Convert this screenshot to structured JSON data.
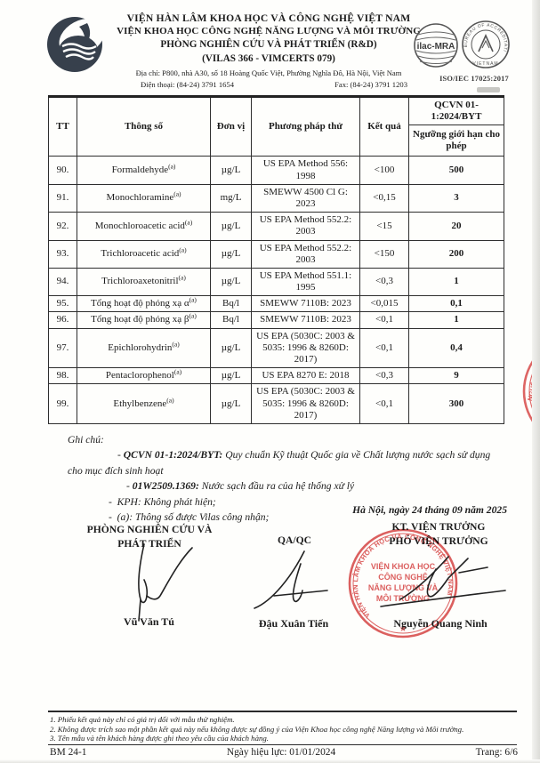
{
  "header": {
    "org_line1": "VIỆN HÀN LÂM KHOA HỌC VÀ CÔNG NGHỆ VIỆT NAM",
    "org_line2": "VIỆN KHOA HỌC CÔNG NGHỆ NĂNG LƯỢNG VÀ MÔI TRƯỜNG",
    "org_line3": "PHÒNG NGHIÊN CỨU VÀ PHÁT TRIỂN (R&D)",
    "org_line4": "(VILAS 366 - VIMCERTS 079)",
    "address": "Địa chỉ: P800, nhà A30, số 18 Hoàng Quốc Việt, Phường Nghĩa Đô, Hà Nội, Việt Nam",
    "phone": "Điện thoại: (84-24) 3791 1654",
    "fax": "Fax: (84-24) 3791 1203",
    "ilac_label": "ilac-MRA",
    "accreditation_ring_text": "BUREAU OF ACCREDITATION",
    "accreditation_bottom_text": "VIETNAM",
    "iso_label": "ISO/IEC 17025:2017"
  },
  "table": {
    "col_headers": {
      "tt": "TT",
      "param": "Thông số",
      "unit": "Đơn vị",
      "method": "Phương pháp thử",
      "result": "Kết quả"
    },
    "qcvn_header": "QCVN 01-1:2024/BYT",
    "qcvn_subheader": "Ngưỡng giới hạn cho phép",
    "rows": [
      {
        "tt": "90.",
        "param": "Formaldehyde",
        "mark": "(a)",
        "unit": "µg/L",
        "method": "US EPA Method 556: 1998",
        "result": "<100",
        "limit": "500"
      },
      {
        "tt": "91.",
        "param": "Monochloramine",
        "mark": "(a)",
        "unit": "mg/L",
        "method": "SMEWW 4500 Cl G: 2023",
        "result": "<0,15",
        "limit": "3"
      },
      {
        "tt": "92.",
        "param": "Monochloroacetic acid",
        "mark": "(a)",
        "unit": "µg/L",
        "method": "US EPA Method 552.2: 2003",
        "result": "<15",
        "limit": "20"
      },
      {
        "tt": "93.",
        "param": "Trichloroacetic acid",
        "mark": "(a)",
        "unit": "µg/L",
        "method": "US EPA Method 552.2: 2003",
        "result": "<150",
        "limit": "200"
      },
      {
        "tt": "94.",
        "param": "Trichloroaxetonitril",
        "mark": "(a)",
        "unit": "µg/L",
        "method": "US EPA Method 551.1: 1995",
        "result": "<0,3",
        "limit": "1"
      },
      {
        "tt": "95.",
        "param": "Tổng hoạt độ phóng xạ α",
        "mark": "(a)",
        "unit": "Bq/l",
        "method": "SMEWW 7110B: 2023",
        "result": "<0,015",
        "limit": "0,1"
      },
      {
        "tt": "96.",
        "param": "Tổng hoạt độ phóng xạ β",
        "mark": "(a)",
        "unit": "Bq/l",
        "method": "SMEWW 7110B: 2023",
        "result": "<0,1",
        "limit": "1"
      },
      {
        "tt": "97.",
        "param": "Epichlorohydrin",
        "mark": "(a)",
        "unit": "µg/L",
        "method": "US EPA (5030C: 2003 & 5035: 1996 & 8260D: 2017)",
        "result": "<0,1",
        "limit": "0,4"
      },
      {
        "tt": "98.",
        "param": "Pentaclorophenol",
        "mark": "(a)",
        "unit": "µg/L",
        "method": "US EPA 8270 E: 2018",
        "result": "<0,3",
        "limit": "9"
      },
      {
        "tt": "99.",
        "param": "Ethylbenzene",
        "mark": "(a)",
        "unit": "µg/L",
        "method": "US EPA (5030C: 2003 & 5035: 1996 & 8260D: 2017)",
        "result": "<0,1",
        "limit": "300"
      }
    ]
  },
  "notes": {
    "label": "Ghi chú:",
    "items": [
      {
        "lead": "QCVN 01-1:2024/BYT:",
        "rest": "Quy chuẩn Kỹ thuật Quốc gia về Chất lượng nước sạch sử dụng cho mục đích sinh hoạt"
      },
      {
        "lead": "01W2509.1369:",
        "rest": "Nước sạch đầu ra của hệ thống xử lý"
      },
      {
        "lead": "",
        "rest": "KPH: Không phát hiện;"
      },
      {
        "lead": "",
        "rest": "(a): Thông số được Vilas công nhận;"
      }
    ]
  },
  "signoff": {
    "date_line": "Hà Nội, ngày 24 tháng 09 năm 2025",
    "left_title_line1": "PHÒNG NGHIÊN CỨU VÀ",
    "left_title_line2": "PHÁT TRIỂN",
    "left_name": "Vũ Văn Tú",
    "mid_title": "QA/QC",
    "mid_name": "Đậu Xuân Tiến",
    "right_title_line1": "KT. VIỆN TRƯỞNG",
    "right_title_line2": "PHÓ VIỆN TRƯỞNG",
    "right_name": "Nguyễn Quang Ninh",
    "stamp": {
      "ring_text": "VIỆN HÀN LÂM KHOA HỌC VÀ CÔNG NGHỆ VIỆT NAM",
      "center_line1": "VIỆN KHOA HỌC",
      "center_line2": "CÔNG NGHỆ",
      "center_line3": "NĂNG LƯỢNG VÀ",
      "center_line4": "MÔI TRƯỜNG",
      "star": "★",
      "color": "#d84a4a"
    },
    "edge_stamp_fragment": "NGHỆ V"
  },
  "footer": {
    "notes": [
      "1. Phiếu kết quả này chỉ có giá trị đối với mẫu thử nghiệm.",
      "2. Không được trích sao một phần kết quả này nếu không được sự đồng ý của Viện Khoa học công nghệ Năng lượng và Môi trường.",
      "3. Tên mẫu và tên khách hàng được ghi theo yêu cầu của khách hàng."
    ],
    "form_code": "BM 24-1",
    "effective_date": "Ngày hiệu lực: 01/01/2024",
    "page_label": "Trang: 6/6"
  }
}
